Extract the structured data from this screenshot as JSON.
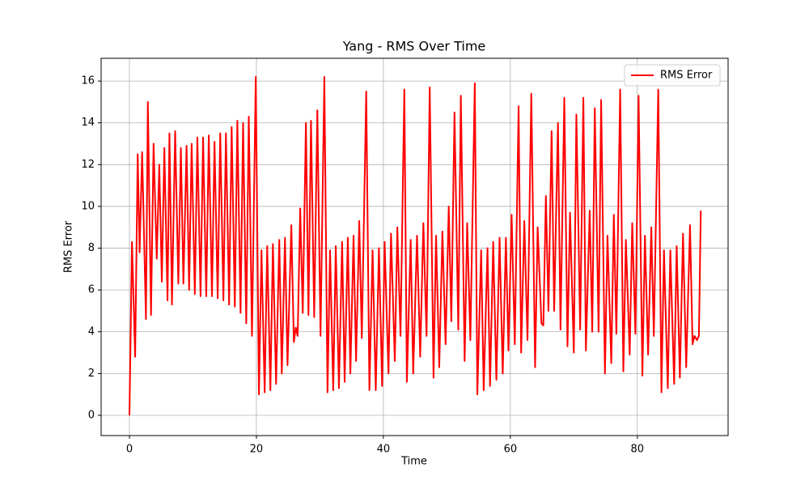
{
  "chart_data": {
    "type": "line",
    "title": "Yang - RMS Over Time",
    "xlabel": "Time",
    "ylabel": "RMS Error",
    "x": [
      0,
      0.4,
      0.9,
      1.3,
      1.6,
      2.0,
      2.6,
      2.9,
      3.4,
      3.8,
      4.3,
      4.7,
      5.1,
      5.5,
      6.0,
      6.3,
      6.7,
      7.2,
      7.7,
      8.1,
      8.5,
      9.0,
      9.4,
      9.8,
      10.3,
      10.7,
      11.2,
      11.6,
      12.1,
      12.5,
      13.0,
      13.4,
      13.9,
      14.3,
      14.8,
      15.2,
      15.7,
      16.1,
      16.6,
      17.0,
      17.5,
      17.9,
      18.4,
      18.8,
      19.3,
      19.9,
      20.4,
      20.8,
      21.3,
      21.7,
      22.2,
      22.6,
      23.1,
      23.6,
      24.0,
      24.5,
      24.9,
      25.5,
      25.9,
      26.2,
      26.5,
      26.9,
      27.3,
      27.8,
      28.2,
      28.6,
      29.1,
      29.6,
      30.1,
      30.7,
      31.2,
      31.6,
      32.1,
      32.5,
      33.0,
      33.5,
      33.9,
      34.4,
      34.8,
      35.3,
      35.7,
      36.2,
      36.6,
      37.3,
      37.8,
      38.3,
      38.8,
      39.3,
      39.8,
      40.2,
      40.8,
      41.2,
      41.8,
      42.2,
      42.7,
      43.3,
      43.7,
      44.3,
      44.7,
      45.3,
      45.8,
      46.3,
      46.8,
      47.3,
      47.9,
      48.3,
      48.8,
      49.3,
      49.8,
      50.3,
      50.7,
      51.2,
      51.8,
      52.2,
      52.8,
      53.2,
      53.7,
      54.4,
      54.8,
      55.4,
      55.8,
      56.4,
      56.8,
      57.3,
      57.8,
      58.3,
      58.8,
      59.3,
      59.7,
      60.2,
      60.7,
      61.3,
      61.7,
      62.2,
      62.7,
      63.3,
      63.9,
      64.3,
      64.9,
      65.2,
      65.6,
      66.0,
      66.5,
      66.9,
      67.5,
      67.9,
      68.5,
      69.0,
      69.4,
      70.0,
      70.4,
      71.0,
      71.5,
      71.9,
      72.5,
      72.9,
      73.3,
      73.9,
      74.3,
      74.9,
      75.3,
      75.9,
      76.3,
      76.7,
      77.3,
      77.8,
      78.2,
      78.8,
      79.2,
      79.7,
      80.2,
      80.8,
      81.2,
      81.7,
      82.2,
      82.6,
      83.3,
      83.8,
      84.2,
      84.8,
      85.2,
      85.8,
      86.2,
      86.7,
      87.2,
      87.7,
      88.3,
      88.7,
      89.0,
      89.4,
      89.7,
      90.0
    ],
    "series": [
      {
        "name": "RMS Error",
        "color": "#ff0000",
        "values": [
          0,
          8.3,
          2.8,
          12.5,
          7.8,
          12.6,
          4.6,
          15.0,
          4.8,
          13.0,
          7.5,
          12.0,
          6.4,
          12.8,
          5.5,
          13.5,
          5.3,
          13.6,
          6.3,
          12.8,
          6.3,
          12.9,
          6.0,
          13.0,
          5.8,
          13.3,
          5.7,
          13.3,
          5.7,
          13.4,
          5.7,
          13.1,
          5.6,
          13.5,
          5.5,
          13.5,
          5.3,
          13.8,
          5.2,
          14.1,
          4.9,
          14.0,
          4.4,
          14.3,
          3.8,
          16.2,
          1.0,
          7.9,
          1.1,
          8.1,
          1.2,
          8.2,
          1.5,
          8.4,
          2.0,
          8.5,
          2.4,
          9.1,
          3.5,
          4.2,
          3.8,
          9.9,
          4.9,
          14.0,
          4.8,
          14.1,
          4.7,
          14.6,
          3.8,
          16.2,
          1.1,
          7.9,
          1.2,
          8.1,
          1.3,
          8.3,
          1.6,
          8.5,
          2.0,
          8.6,
          2.6,
          9.3,
          3.7,
          15.5,
          1.2,
          7.9,
          1.2,
          8.0,
          1.4,
          8.3,
          2.0,
          8.7,
          2.6,
          9.0,
          3.8,
          15.6,
          1.6,
          8.4,
          2.0,
          8.6,
          2.8,
          9.2,
          3.8,
          15.7,
          1.8,
          8.6,
          2.3,
          8.8,
          3.4,
          10.0,
          4.5,
          14.5,
          4.1,
          15.3,
          2.6,
          9.2,
          3.6,
          15.9,
          1.0,
          7.9,
          1.2,
          8.0,
          1.4,
          8.3,
          1.7,
          8.5,
          2.0,
          8.5,
          3.1,
          9.6,
          3.4,
          14.8,
          3.0,
          9.3,
          3.6,
          15.4,
          2.3,
          9.0,
          4.4,
          4.3,
          10.5,
          5.0,
          13.6,
          5.0,
          14.0,
          4.1,
          15.2,
          3.3,
          9.7,
          3.0,
          14.4,
          4.1,
          15.2,
          3.1,
          9.8,
          4.0,
          14.7,
          4.0,
          15.1,
          2.0,
          8.6,
          2.5,
          9.6,
          3.9,
          15.6,
          2.1,
          8.4,
          2.9,
          9.2,
          3.9,
          15.3,
          1.9,
          8.6,
          2.9,
          9.0,
          3.8,
          15.6,
          1.1,
          7.9,
          1.3,
          7.9,
          1.5,
          8.1,
          1.8,
          8.7,
          2.3,
          9.1,
          3.4,
          3.8,
          3.6,
          3.8,
          9.8
        ]
      }
    ],
    "xlim": [
      -4.46,
      94.3
    ],
    "ylim": [
      -0.97,
      17.09
    ],
    "xticks": [
      0,
      20,
      40,
      60,
      80
    ],
    "yticks": [
      0,
      2,
      4,
      6,
      8,
      10,
      12,
      14,
      16
    ],
    "grid": true,
    "legend": "upper right"
  }
}
